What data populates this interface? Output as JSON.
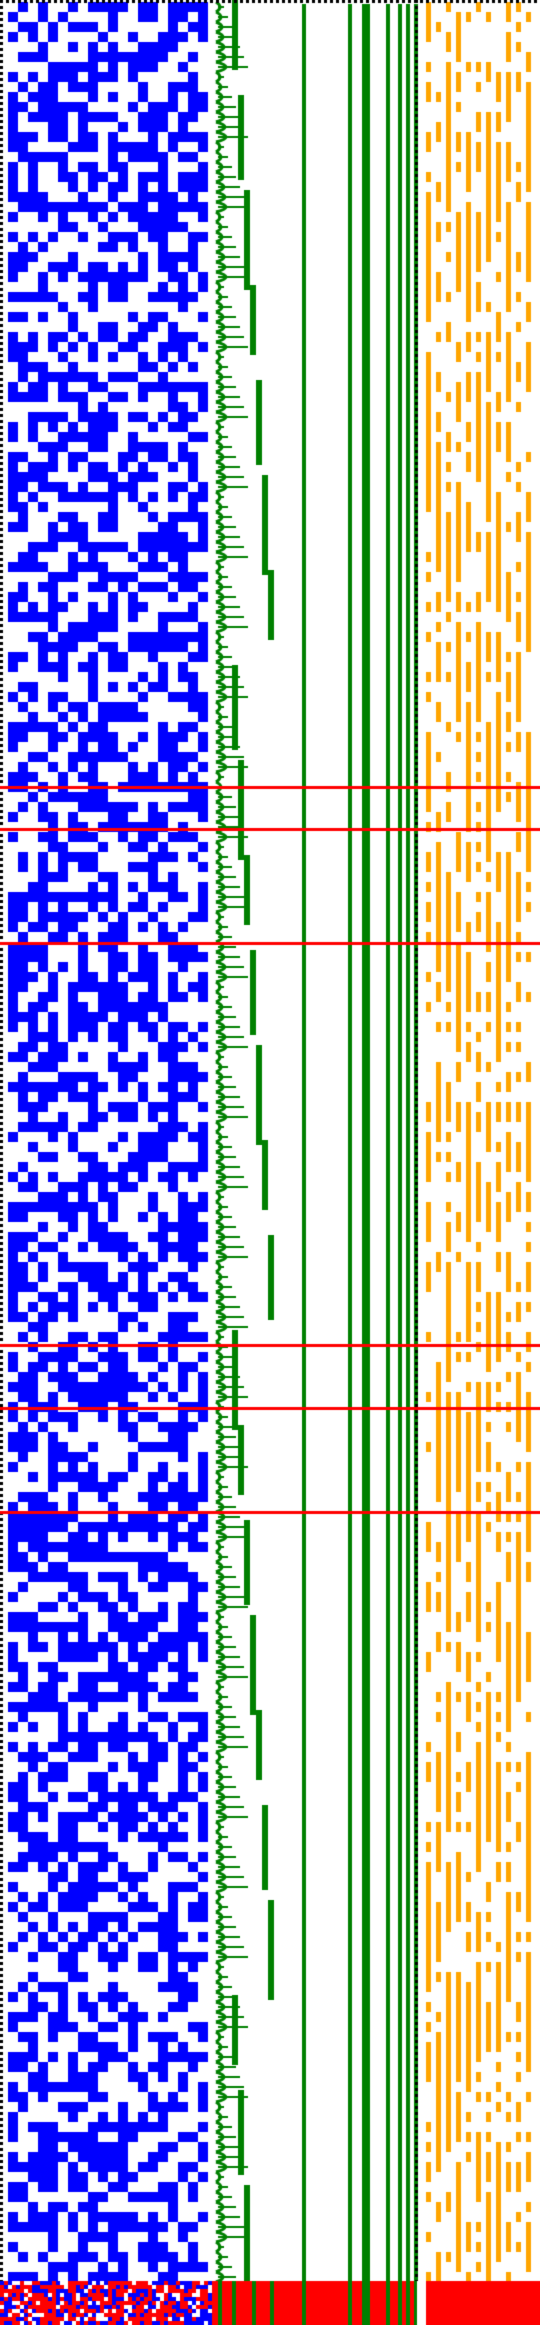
{
  "figure": {
    "background": "#ffffff",
    "colors": {
      "blue_cells": "#0000ff",
      "green_cells": "#008000",
      "orange_cells": "#ffa500",
      "red_marks": "#ff0000",
      "dotted_borders": "#000000"
    },
    "grid": {
      "rows": 232,
      "blue_fill_density": 0.52,
      "orange_fill_density": 0.4
    },
    "green_vertical_lines_count": 8,
    "red_horizontal_markers_at_row_fraction": [
      0.338,
      0.356,
      0.405,
      0.578,
      0.605,
      0.65
    ],
    "bottom_band_rows": 11
  }
}
